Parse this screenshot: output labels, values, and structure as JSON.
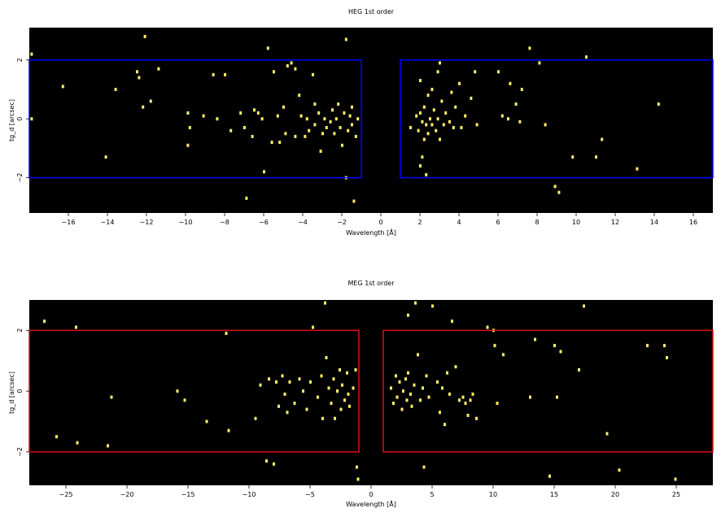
{
  "chart_data": [
    {
      "type": "scatter",
      "title": "HEG 1st order",
      "xlabel": "Wavelength [Å]",
      "ylabel": "tg_d [arcsec]",
      "xlim": [
        -18,
        17
      ],
      "ylim": [
        -3.2,
        3.1
      ],
      "xticks": [
        -16,
        -14,
        -12,
        -10,
        -8,
        -6,
        -4,
        -2,
        0,
        2,
        4,
        6,
        8,
        10,
        12,
        14,
        16
      ],
      "xtick_labels": [
        "−16",
        "−14",
        "−12",
        "−10",
        "−8",
        "−6",
        "−4",
        "−2",
        "0",
        "2",
        "4",
        "6",
        "8",
        "10",
        "12",
        "14",
        "16"
      ],
      "yticks": [
        -2,
        0,
        2
      ],
      "ytick_labels": [
        "−2",
        "0",
        "2"
      ],
      "background": "#000000",
      "point_color": "#ffee66",
      "region_color": "#0000ff",
      "regions": [
        {
          "x": [
            -18,
            -1
          ],
          "y": [
            -2,
            2
          ]
        },
        {
          "x": [
            1,
            17
          ],
          "y": [
            -2,
            2
          ]
        }
      ],
      "points": [
        [
          -17.9,
          2.2
        ],
        [
          -17.9,
          0.0
        ],
        [
          -16.3,
          1.1
        ],
        [
          -14.1,
          -1.3
        ],
        [
          -13.6,
          1.0
        ],
        [
          -12.5,
          1.6
        ],
        [
          -12.4,
          1.4
        ],
        [
          -12.2,
          0.4
        ],
        [
          -12.1,
          2.8
        ],
        [
          -11.8,
          0.6
        ],
        [
          -11.4,
          1.7
        ],
        [
          -9.9,
          0.2
        ],
        [
          -9.9,
          -0.9
        ],
        [
          -9.8,
          -0.3
        ],
        [
          -9.1,
          0.1
        ],
        [
          -8.6,
          1.5
        ],
        [
          -8.4,
          0.0
        ],
        [
          -8.0,
          1.5
        ],
        [
          -7.7,
          -0.4
        ],
        [
          -7.2,
          0.2
        ],
        [
          -7.0,
          -0.3
        ],
        [
          -6.9,
          -2.7
        ],
        [
          -6.6,
          -0.6
        ],
        [
          -6.5,
          0.3
        ],
        [
          -6.3,
          0.2
        ],
        [
          -6.1,
          0.0
        ],
        [
          -6.0,
          -1.8
        ],
        [
          -5.8,
          2.4
        ],
        [
          -5.6,
          -0.8
        ],
        [
          -5.5,
          1.6
        ],
        [
          -5.3,
          0.1
        ],
        [
          -5.2,
          -0.8
        ],
        [
          -5.0,
          0.4
        ],
        [
          -4.9,
          -0.5
        ],
        [
          -4.8,
          1.8
        ],
        [
          -4.6,
          1.9
        ],
        [
          -4.4,
          -0.6
        ],
        [
          -4.4,
          1.7
        ],
        [
          -4.2,
          0.8
        ],
        [
          -4.1,
          0.1
        ],
        [
          -3.9,
          -0.6
        ],
        [
          -3.8,
          0.0
        ],
        [
          -3.7,
          -0.4
        ],
        [
          -3.5,
          1.5
        ],
        [
          -3.4,
          0.5
        ],
        [
          -3.4,
          -0.2
        ],
        [
          -3.2,
          0.2
        ],
        [
          -3.1,
          -1.1
        ],
        [
          -3.0,
          -0.5
        ],
        [
          -2.9,
          0.0
        ],
        [
          -2.8,
          -0.3
        ],
        [
          -2.6,
          -0.1
        ],
        [
          -2.5,
          0.3
        ],
        [
          -2.4,
          -0.5
        ],
        [
          -2.3,
          0.0
        ],
        [
          -2.2,
          0.5
        ],
        [
          -2.1,
          -0.3
        ],
        [
          -2.0,
          -0.9
        ],
        [
          -1.9,
          0.2
        ],
        [
          -1.8,
          2.7
        ],
        [
          -1.8,
          -2.0
        ],
        [
          -1.7,
          -0.4
        ],
        [
          -1.6,
          0.1
        ],
        [
          -1.5,
          0.4
        ],
        [
          -1.5,
          -0.2
        ],
        [
          -1.4,
          -2.8
        ],
        [
          -1.3,
          -0.6
        ],
        [
          -1.2,
          0.0
        ],
        [
          1.5,
          -0.3
        ],
        [
          1.8,
          0.1
        ],
        [
          1.9,
          -0.4
        ],
        [
          2.0,
          0.2
        ],
        [
          2.0,
          -1.6
        ],
        [
          2.0,
          1.3
        ],
        [
          2.1,
          -0.1
        ],
        [
          2.1,
          -1.3
        ],
        [
          2.2,
          0.4
        ],
        [
          2.2,
          -0.7
        ],
        [
          2.3,
          -0.2
        ],
        [
          2.3,
          -1.9
        ],
        [
          2.4,
          0.8
        ],
        [
          2.4,
          -0.5
        ],
        [
          2.5,
          0.0
        ],
        [
          2.6,
          -0.2
        ],
        [
          2.6,
          1.0
        ],
        [
          2.7,
          0.3
        ],
        [
          2.8,
          -0.4
        ],
        [
          2.9,
          1.6
        ],
        [
          2.9,
          0.0
        ],
        [
          3.0,
          1.9
        ],
        [
          3.0,
          -0.7
        ],
        [
          3.1,
          0.6
        ],
        [
          3.2,
          -0.2
        ],
        [
          3.3,
          0.2
        ],
        [
          3.5,
          -0.1
        ],
        [
          3.6,
          0.9
        ],
        [
          3.7,
          -0.3
        ],
        [
          3.8,
          0.4
        ],
        [
          4.0,
          1.2
        ],
        [
          4.1,
          -0.3
        ],
        [
          4.3,
          0.1
        ],
        [
          4.6,
          0.7
        ],
        [
          4.8,
          1.6
        ],
        [
          4.9,
          -0.2
        ],
        [
          6.0,
          1.6
        ],
        [
          6.2,
          0.1
        ],
        [
          6.5,
          0.0
        ],
        [
          6.6,
          1.2
        ],
        [
          6.9,
          0.5
        ],
        [
          7.1,
          -0.1
        ],
        [
          7.2,
          1.0
        ],
        [
          7.6,
          2.4
        ],
        [
          8.1,
          1.9
        ],
        [
          8.4,
          -0.2
        ],
        [
          8.9,
          -2.3
        ],
        [
          9.1,
          -2.5
        ],
        [
          9.8,
          -1.3
        ],
        [
          10.5,
          2.1
        ],
        [
          11.0,
          -1.3
        ],
        [
          11.3,
          -0.7
        ],
        [
          13.1,
          -1.7
        ],
        [
          14.2,
          0.5
        ]
      ]
    },
    {
      "type": "scatter",
      "title": "MEG 1st order",
      "xlabel": "Wavelength [Å]",
      "ylabel": "tg_d [arcsec]",
      "xlim": [
        -28,
        28
      ],
      "ylim": [
        -3.1,
        3.0
      ],
      "xticks": [
        -25,
        -20,
        -15,
        -10,
        -5,
        0,
        5,
        10,
        15,
        20,
        25
      ],
      "xtick_labels": [
        "−25",
        "−20",
        "−15",
        "−10",
        "−5",
        "0",
        "5",
        "10",
        "15",
        "20",
        "25"
      ],
      "yticks": [
        -2,
        0,
        2
      ],
      "ytick_labels": [
        "−2",
        "0",
        "2"
      ],
      "background": "#000000",
      "point_color": "#ffee66",
      "region_color": "#dd1111",
      "regions": [
        {
          "x": [
            -28,
            -1
          ],
          "y": [
            -2,
            2
          ]
        },
        {
          "x": [
            1,
            28
          ],
          "y": [
            -2,
            2
          ]
        }
      ],
      "points": [
        [
          -26.8,
          2.3
        ],
        [
          -25.8,
          -1.5
        ],
        [
          -24.2,
          2.1
        ],
        [
          -24.1,
          -1.7
        ],
        [
          -21.6,
          -1.8
        ],
        [
          -21.3,
          -0.2
        ],
        [
          -15.9,
          0.0
        ],
        [
          -15.3,
          -0.3
        ],
        [
          -13.5,
          -1.0
        ],
        [
          -11.9,
          1.9
        ],
        [
          -11.7,
          -1.3
        ],
        [
          -9.5,
          -0.9
        ],
        [
          -9.1,
          0.2
        ],
        [
          -8.6,
          -2.3
        ],
        [
          -8.4,
          0.4
        ],
        [
          -8.0,
          -2.4
        ],
        [
          -7.8,
          0.3
        ],
        [
          -7.6,
          -0.5
        ],
        [
          -7.3,
          0.5
        ],
        [
          -7.1,
          -0.1
        ],
        [
          -6.9,
          -0.7
        ],
        [
          -6.7,
          0.3
        ],
        [
          -6.3,
          -0.4
        ],
        [
          -5.9,
          0.4
        ],
        [
          -5.6,
          0.0
        ],
        [
          -5.3,
          -0.6
        ],
        [
          -5.0,
          0.3
        ],
        [
          -4.8,
          2.1
        ],
        [
          -4.4,
          -0.2
        ],
        [
          -4.1,
          0.5
        ],
        [
          -4.0,
          -0.9
        ],
        [
          -3.8,
          2.9
        ],
        [
          -3.7,
          1.1
        ],
        [
          -3.5,
          0.1
        ],
        [
          -3.3,
          -0.4
        ],
        [
          -3.1,
          0.4
        ],
        [
          -3.0,
          -0.9
        ],
        [
          -2.8,
          0.0
        ],
        [
          -2.6,
          0.7
        ],
        [
          -2.5,
          -0.6
        ],
        [
          -2.4,
          0.2
        ],
        [
          -2.2,
          -0.3
        ],
        [
          -2.0,
          0.6
        ],
        [
          -1.9,
          -0.1
        ],
        [
          -1.8,
          -0.5
        ],
        [
          -1.5,
          0.1
        ],
        [
          -1.3,
          0.7
        ],
        [
          -1.2,
          -2.5
        ],
        [
          -1.1,
          -2.9
        ],
        [
          1.6,
          0.1
        ],
        [
          1.8,
          -0.4
        ],
        [
          2.0,
          0.5
        ],
        [
          2.1,
          -0.2
        ],
        [
          2.3,
          0.3
        ],
        [
          2.5,
          -0.6
        ],
        [
          2.6,
          0.0
        ],
        [
          2.8,
          0.4
        ],
        [
          2.9,
          -0.3
        ],
        [
          3.0,
          2.5
        ],
        [
          3.0,
          0.6
        ],
        [
          3.2,
          -0.1
        ],
        [
          3.3,
          -0.5
        ],
        [
          3.5,
          0.2
        ],
        [
          3.6,
          2.9
        ],
        [
          3.8,
          1.2
        ],
        [
          4.0,
          -0.3
        ],
        [
          4.2,
          0.1
        ],
        [
          4.3,
          -2.5
        ],
        [
          4.5,
          0.5
        ],
        [
          4.7,
          -0.2
        ],
        [
          5.0,
          2.8
        ],
        [
          5.4,
          0.3
        ],
        [
          5.6,
          -0.7
        ],
        [
          5.8,
          0.1
        ],
        [
          6.0,
          -1.1
        ],
        [
          6.2,
          0.6
        ],
        [
          6.4,
          -0.1
        ],
        [
          6.6,
          2.3
        ],
        [
          6.9,
          0.8
        ],
        [
          7.2,
          -0.3
        ],
        [
          7.5,
          -0.2
        ],
        [
          7.7,
          -0.4
        ],
        [
          7.9,
          -0.8
        ],
        [
          8.1,
          -0.3
        ],
        [
          8.3,
          -0.1
        ],
        [
          8.6,
          -0.9
        ],
        [
          9.5,
          2.1
        ],
        [
          10.0,
          2.0
        ],
        [
          10.1,
          1.5
        ],
        [
          10.3,
          -0.4
        ],
        [
          10.8,
          1.2
        ],
        [
          13.0,
          -0.2
        ],
        [
          13.4,
          1.7
        ],
        [
          14.6,
          -2.8
        ],
        [
          15.0,
          1.5
        ],
        [
          15.2,
          -0.2
        ],
        [
          15.5,
          1.3
        ],
        [
          17.0,
          0.7
        ],
        [
          17.4,
          2.8
        ],
        [
          19.3,
          -1.4
        ],
        [
          20.3,
          -2.6
        ],
        [
          22.6,
          1.5
        ],
        [
          24.0,
          1.5
        ],
        [
          24.2,
          1.1
        ],
        [
          24.9,
          -2.9
        ]
      ]
    }
  ]
}
